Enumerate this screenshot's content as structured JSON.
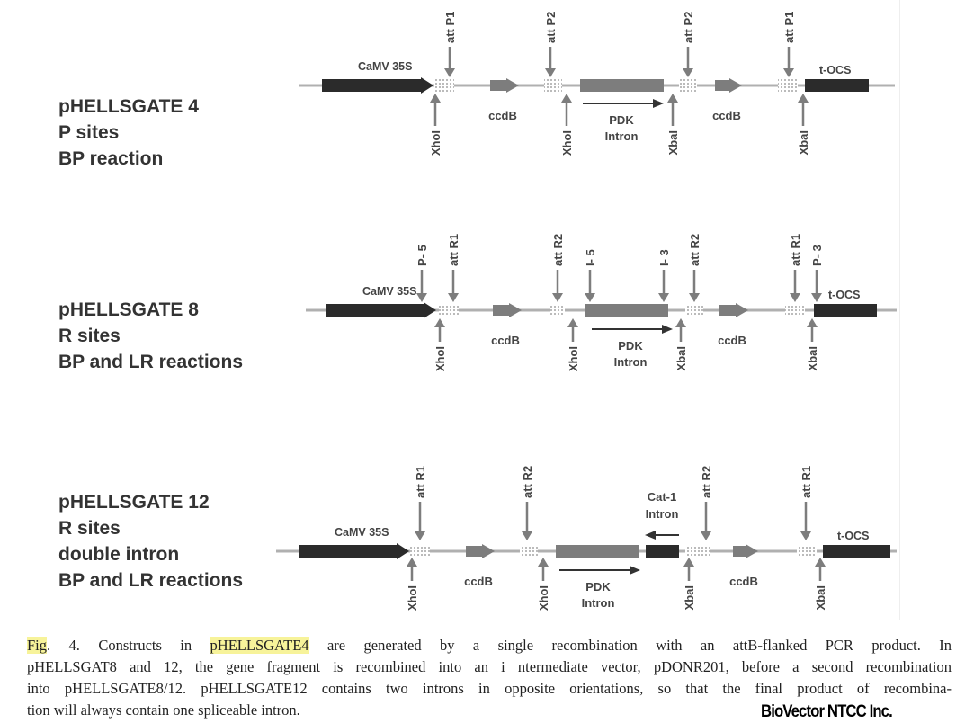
{
  "constructs": [
    {
      "lines": [
        "pHELLSGATE 4",
        "P sites",
        "BP reaction"
      ],
      "promoter": "CaMV 35S",
      "terminator": "t-OCS",
      "top_sites": [
        "att P1",
        "att P2",
        "att P2",
        "att P1"
      ],
      "bottom_sites": [
        "XhoI",
        "XhoI",
        "XbaI",
        "XbaI"
      ],
      "ccdb": [
        "ccdB",
        "ccdB"
      ],
      "intron": [
        "PDK",
        "Intron"
      ]
    },
    {
      "lines": [
        "pHELLSGATE 8",
        "R sites",
        "BP and LR reactions"
      ],
      "promoter": "CaMV 35S",
      "terminator": "t-OCS",
      "top_sites": [
        "P- 5",
        "att R1",
        "att R2",
        "I- 5",
        "I- 3",
        "att R2",
        "att R1",
        "P- 3"
      ],
      "bottom_sites": [
        "XhoI",
        "XhoI",
        "XbaI",
        "XbaI"
      ],
      "ccdb": [
        "ccdB",
        "ccdB"
      ],
      "intron": [
        "PDK",
        "Intron"
      ]
    },
    {
      "lines": [
        "pHELLSGATE 12",
        "R sites",
        "double intron",
        "BP and LR reactions"
      ],
      "promoter": "CaMV 35S",
      "terminator": "t-OCS",
      "top_sites": [
        "att R1",
        "att R2",
        "att R2",
        "att R1"
      ],
      "bottom_sites": [
        "XhoI",
        "XhoI",
        "XbaI",
        "XbaI"
      ],
      "ccdb": [
        "ccdB",
        "ccdB"
      ],
      "intron": [
        "PDK",
        "Intron"
      ],
      "second_intron": [
        "Cat-1",
        "Intron"
      ]
    }
  ],
  "caption": {
    "fig": "Fig",
    "line1_a": ". 4. Constructs in ",
    "highlight": "pHELLSGATE4",
    "line1_b": " are generated by a  single recombination with an attB-flanked PCR product. In",
    "line2": "pHELLSGAT8 and 12, the gene fragment is recombined into an i ntermediate vector, pDONR201, before a second recombination",
    "line3": "into pHELLSGATE8/12. pHELLSGATE12 contains two introns  in opposite orientations, so that the final product of recombina-",
    "line4": "tion will always contain one spliceable intron."
  },
  "watermark": "BioVector NTCC Inc.",
  "colors": {
    "dark_element": "#2b2b2b",
    "grey_element": "#7d7d7d",
    "backbone": "#b0b0b0",
    "highlight": "#f7f39a"
  }
}
